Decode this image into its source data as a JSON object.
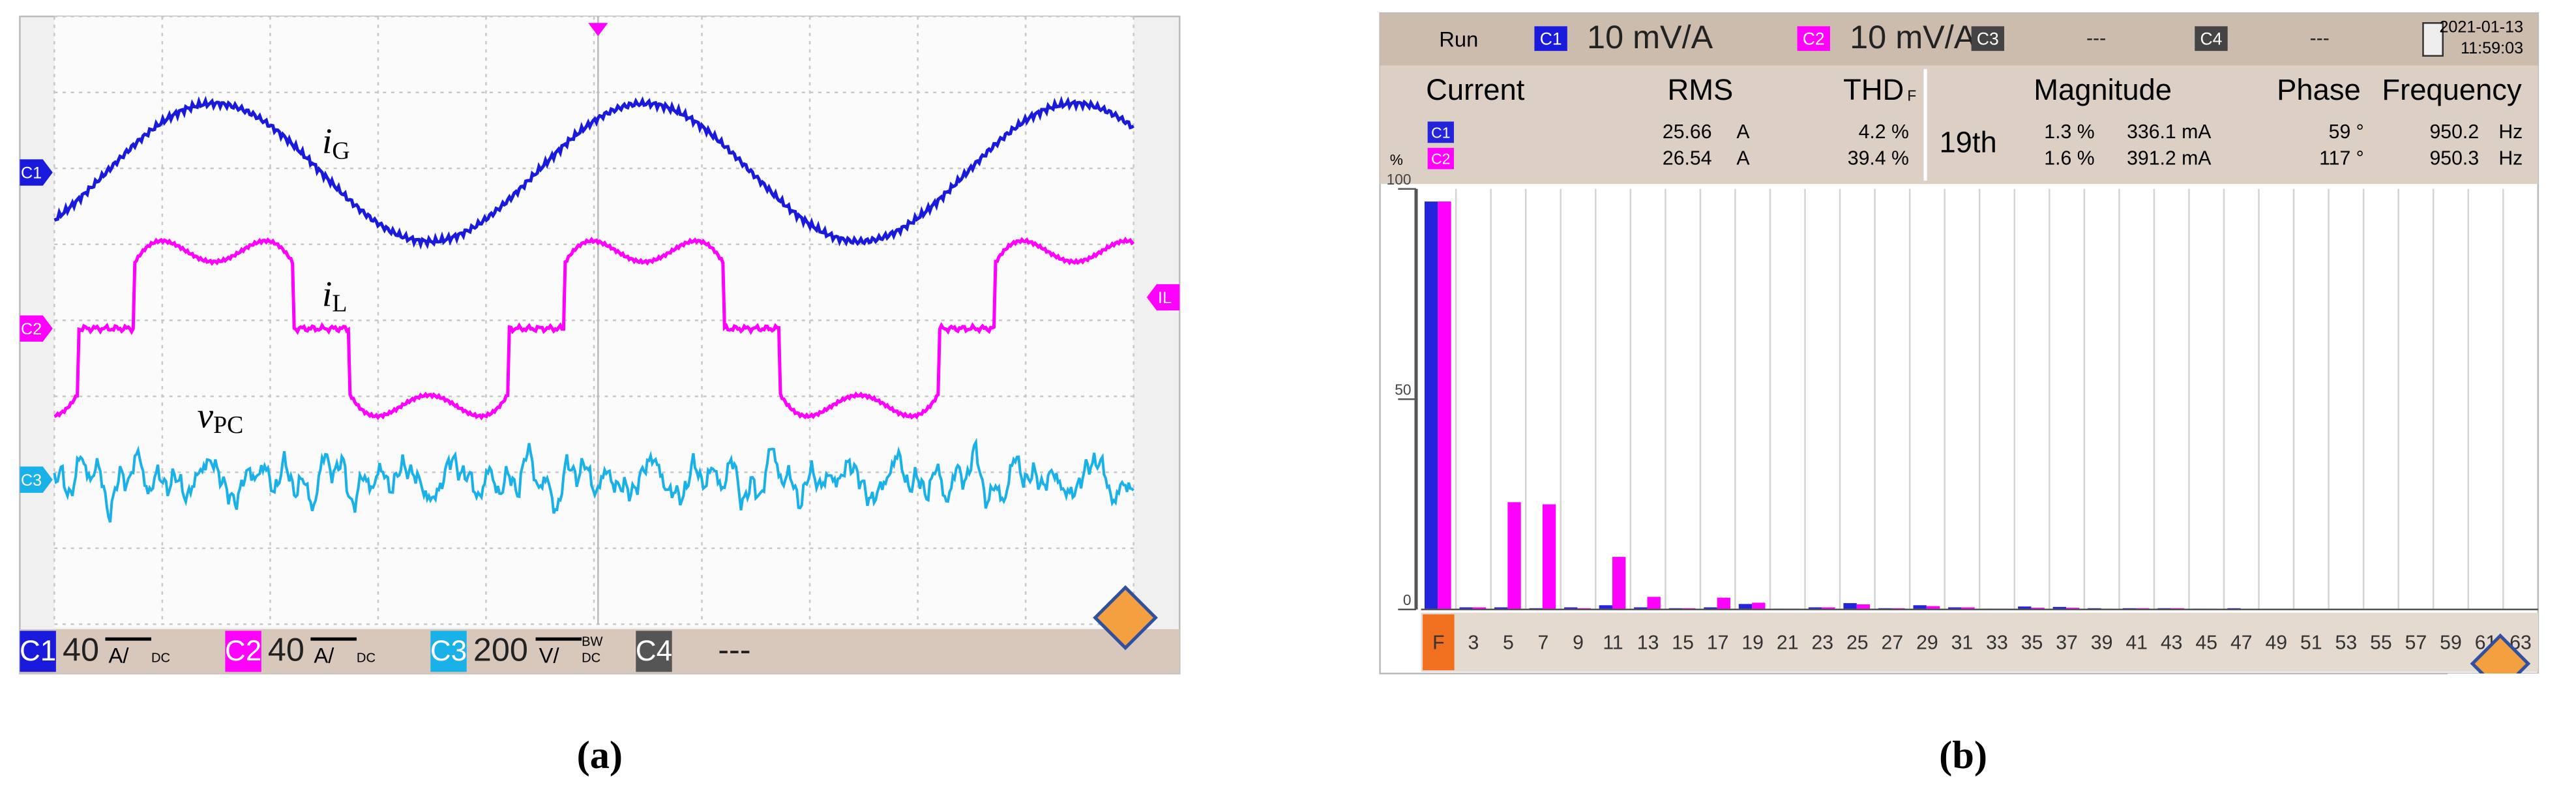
{
  "panel_a": {
    "caption": "(a)",
    "trace_labels": [
      {
        "symbol": "i",
        "subscript": "G"
      },
      {
        "symbol": "i",
        "subscript": "L"
      },
      {
        "symbol": "v",
        "subscript": "PC"
      }
    ],
    "channel_markers": [
      "C1",
      "C2",
      "C3"
    ],
    "right_marker": "IL",
    "status_bar": [
      {
        "name": "C1",
        "scale": "40",
        "unit": "A/",
        "coupling": "DC"
      },
      {
        "name": "C2",
        "scale": "40",
        "unit": "A/",
        "coupling": "DC"
      },
      {
        "name": "C3",
        "scale": "200",
        "unit": "V/",
        "bandwidth": "BW",
        "coupling": "DC"
      },
      {
        "name": "C4",
        "scale": "---"
      }
    ]
  },
  "chart_data": {
    "type": "bar",
    "caption": "(b)",
    "header": {
      "mode": "Run",
      "channels": [
        {
          "name": "C1",
          "scale": "10 mV/A"
        },
        {
          "name": "C2",
          "scale": "10 mV/A"
        },
        {
          "name": "C3",
          "scale": "---"
        },
        {
          "name": "C4",
          "scale": "---"
        }
      ],
      "date": "2021-01-13",
      "time": "11:59:03"
    },
    "readout": {
      "columns": [
        "Current",
        "RMS",
        "THD",
        "Magnitude",
        "Phase",
        "Frequency"
      ],
      "thd_suffix": "F",
      "order": "19th",
      "rows": [
        {
          "rms": "25.66",
          "rms_unit": "A",
          "thd": "4.2 %",
          "magnitude_pct": "1.3 %",
          "magnitude": "336.1 mA",
          "phase": "59 °",
          "frequency": "950.2",
          "frequency_unit": "Hz"
        },
        {
          "rms": "26.54",
          "rms_unit": "A",
          "thd": "39.4 %",
          "magnitude_pct": "1.6 %",
          "magnitude": "391.2 mA",
          "phase": "117 °",
          "frequency": "950.3",
          "frequency_unit": "Hz"
        }
      ]
    },
    "ylabel": "%",
    "categories": [
      "F",
      "3",
      "5",
      "7",
      "9",
      "11",
      "13",
      "15",
      "17",
      "19",
      "21",
      "23",
      "25",
      "27",
      "29",
      "31",
      "33",
      "35",
      "37",
      "39",
      "41",
      "43",
      "45",
      "47",
      "49",
      "51",
      "53",
      "55",
      "57",
      "59",
      "61",
      "63"
    ],
    "series": [
      {
        "name": "C1",
        "color": "#2424dc",
        "values": [
          97,
          0.5,
          0.5,
          0.3,
          0.5,
          1,
          0.5,
          0.3,
          0.5,
          1.3,
          0.2,
          0.5,
          1.5,
          0.3,
          1,
          0.5,
          0.2,
          0.7,
          0.6,
          0.3,
          0.3,
          0.3,
          0.2,
          0.3,
          0.1,
          0.1,
          0.1,
          0.1,
          0.1,
          0.1,
          0.1,
          0.1
        ]
      },
      {
        "name": "C2",
        "color": "#ff00ff",
        "values": [
          97,
          0.5,
          25.5,
          25,
          0.3,
          12.5,
          3,
          0.3,
          2.8,
          1.6,
          0.2,
          0.5,
          1.2,
          0.3,
          0.8,
          0.5,
          0.2,
          0.4,
          0.4,
          0.2,
          0.3,
          0.3,
          0.2,
          0.1,
          0.1,
          0.1,
          0.1,
          0.1,
          0.1,
          0.1,
          0.1,
          0.1
        ]
      }
    ],
    "ylim": [
      0,
      100
    ],
    "yticks": [
      0,
      50,
      100
    ],
    "grid": true
  }
}
